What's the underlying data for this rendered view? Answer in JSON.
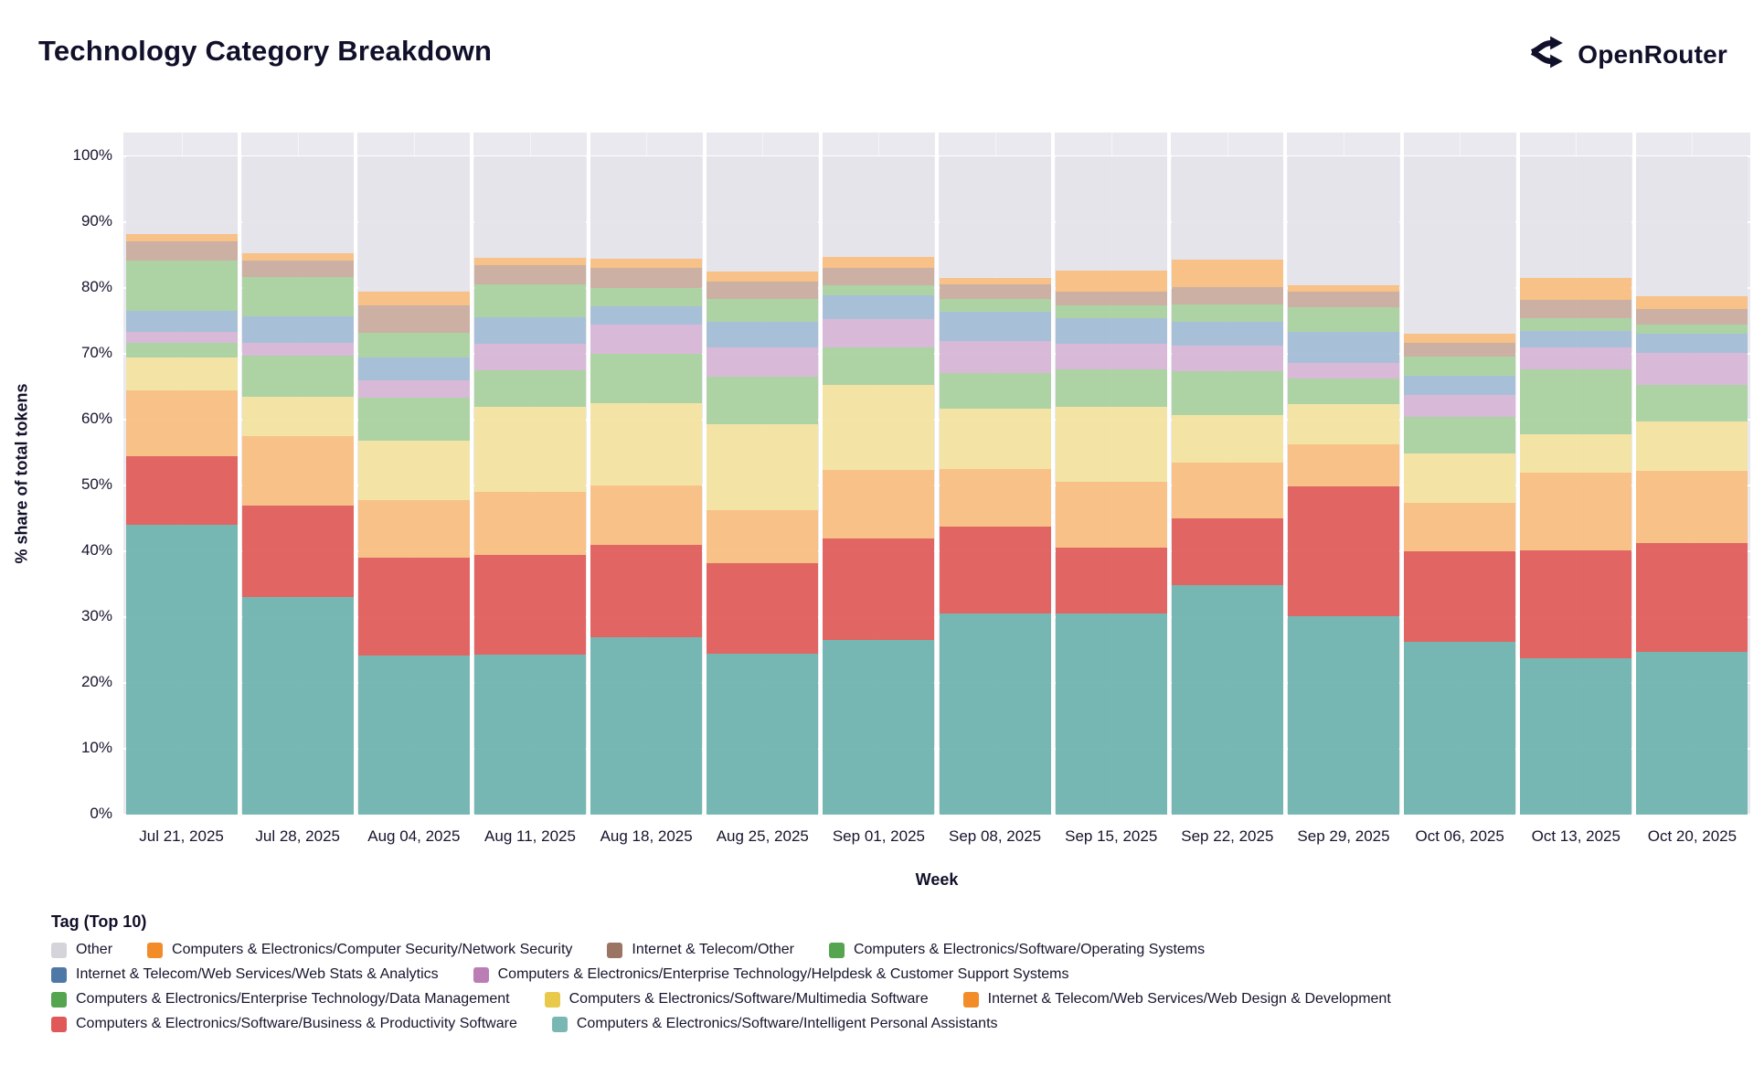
{
  "header": {
    "title": "Technology Category Breakdown",
    "brand": "OpenRouter"
  },
  "chart_data": {
    "type": "bar",
    "stacked": true,
    "title": "Technology Category Breakdown",
    "xlabel": "Week",
    "ylabel": "% share of total tokens",
    "ylim": [
      0,
      100
    ],
    "ytick_step": 10,
    "ytick_suffix": "%",
    "grid": true,
    "plot_background": "#e9e9ef",
    "categories": [
      "Jul 21, 2025",
      "Jul 28, 2025",
      "Aug 04, 2025",
      "Aug 11, 2025",
      "Aug 18, 2025",
      "Aug 25, 2025",
      "Sep 01, 2025",
      "Sep 08, 2025",
      "Sep 15, 2025",
      "Sep 22, 2025",
      "Sep 29, 2025",
      "Oct 06, 2025",
      "Oct 13, 2025",
      "Oct 20, 2025"
    ],
    "series": [
      {
        "name": "Computers & Electronics/Software/Intelligent Personal Assistants",
        "legend_color": "#79b8b2",
        "fill": "#6db3ae",
        "pattern": false,
        "values": [
          44.0,
          33.0,
          24.2,
          24.3,
          27.0,
          24.5,
          26.5,
          30.5,
          30.6,
          34.9,
          30.1,
          26.3,
          23.7,
          24.7
        ]
      },
      {
        "name": "Computers & Electronics/Software/Business & Productivity Software",
        "legend_color": "#e05858",
        "fill": "#e05a57",
        "pattern": false,
        "values": [
          10.5,
          14.0,
          14.8,
          15.2,
          14.0,
          13.7,
          15.5,
          13.3,
          9.9,
          10.1,
          19.7,
          13.7,
          16.5,
          16.6
        ]
      },
      {
        "name": "Internet & Telecom/Web Services/Web Design & Development",
        "legend_color": "#f28c28",
        "fill": "#f8bd80",
        "pattern": false,
        "values": [
          10.0,
          10.5,
          8.8,
          9.5,
          9.0,
          8.1,
          10.3,
          8.7,
          10.1,
          8.5,
          6.5,
          7.4,
          11.8,
          10.9
        ]
      },
      {
        "name": "Computers & Electronics/Software/Multimedia Software",
        "legend_color": "#e8c94a",
        "fill": "#f3e3a0",
        "pattern": false,
        "values": [
          5.0,
          6.0,
          9.0,
          13.0,
          12.5,
          13.0,
          13.0,
          9.1,
          11.3,
          7.2,
          6.1,
          7.4,
          5.8,
          7.5
        ]
      },
      {
        "name": "Computers & Electronics/Enterprise Technology/Data Management",
        "legend_color": "#55a44f",
        "fill": "#a8d19f",
        "pattern": false,
        "values": [
          2.2,
          6.2,
          6.5,
          5.5,
          7.5,
          7.2,
          5.7,
          5.5,
          5.8,
          6.7,
          3.8,
          5.6,
          9.8,
          5.6
        ]
      },
      {
        "name": "Computers & Electronics/Enterprise Technology/Helpdesk & Customer Support Systems",
        "legend_color": "#ba7eb4",
        "fill": "#d7b5d6",
        "pattern": true,
        "values": [
          1.6,
          2.0,
          2.7,
          4.0,
          4.4,
          4.5,
          4.3,
          4.8,
          3.8,
          3.9,
          2.4,
          3.4,
          3.4,
          4.8
        ]
      },
      {
        "name": "Internet & Telecom/Web Services/Web Stats & Analytics",
        "legend_color": "#4e79a7",
        "fill": "#a3bbd6",
        "pattern": false,
        "values": [
          3.2,
          4.0,
          3.4,
          4.0,
          2.8,
          3.8,
          3.6,
          4.5,
          3.9,
          3.6,
          4.8,
          2.9,
          2.5,
          2.9
        ]
      },
      {
        "name": "Computers & Electronics/Software/Operating Systems",
        "legend_color": "#55a44f",
        "fill": "#a8d19f",
        "pattern": false,
        "values": [
          7.7,
          6.0,
          3.8,
          5.0,
          2.8,
          3.5,
          1.5,
          2.0,
          1.9,
          2.6,
          3.7,
          2.9,
          1.9,
          1.4
        ]
      },
      {
        "name": "Internet & Telecom/Other",
        "legend_color": "#9c7464",
        "fill": "#c8ab9d",
        "pattern": true,
        "values": [
          2.9,
          2.5,
          4.1,
          3.0,
          3.0,
          2.7,
          2.6,
          2.1,
          2.1,
          2.7,
          2.4,
          2.1,
          2.8,
          2.4
        ]
      },
      {
        "name": "Computers & Electronics/Computer Security/Network Security",
        "legend_color": "#f28c28",
        "fill": "#f8bd80",
        "pattern": false,
        "values": [
          1.1,
          1.1,
          2.1,
          1.1,
          1.5,
          1.5,
          1.7,
          1.1,
          3.2,
          4.1,
          0.9,
          1.3,
          3.3,
          1.9
        ]
      },
      {
        "name": "Other",
        "legend_color": "#d4d4da",
        "fill": "#e3e3e9",
        "pattern": false,
        "values": [
          11.8,
          14.7,
          20.6,
          15.4,
          15.5,
          17.5,
          15.3,
          18.4,
          17.4,
          15.7,
          19.6,
          27.0,
          18.5,
          21.3
        ]
      }
    ],
    "legend": {
      "title": "Tag (Top 10)",
      "position": "bottom",
      "rows": [
        [
          "Other",
          "Computers & Electronics/Computer Security/Network Security",
          "Internet & Telecom/Other",
          "Computers & Electronics/Software/Operating Systems"
        ],
        [
          "Internet & Telecom/Web Services/Web Stats & Analytics",
          "Computers & Electronics/Enterprise Technology/Helpdesk & Customer Support Systems"
        ],
        [
          "Computers & Electronics/Enterprise Technology/Data Management",
          "Computers & Electronics/Software/Multimedia Software",
          "Internet & Telecom/Web Services/Web Design & Development"
        ],
        [
          "Computers & Electronics/Software/Business & Productivity Software",
          "Computers & Electronics/Software/Intelligent Personal Assistants"
        ]
      ]
    }
  }
}
